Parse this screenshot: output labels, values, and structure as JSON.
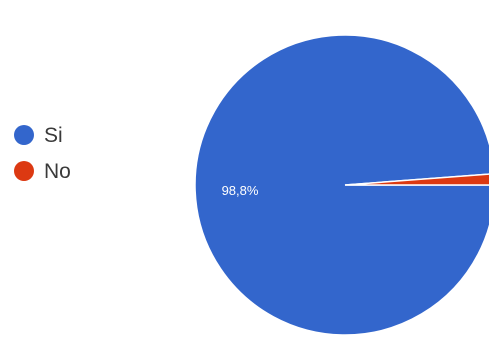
{
  "chart_data": {
    "type": "pie",
    "labels": [
      "Si",
      "No"
    ],
    "values": [
      98.8,
      1.2
    ],
    "colors": [
      "#3366cc",
      "#dc3912"
    ],
    "data_labels": [
      "98,8%",
      ""
    ],
    "legend_position": "left"
  }
}
